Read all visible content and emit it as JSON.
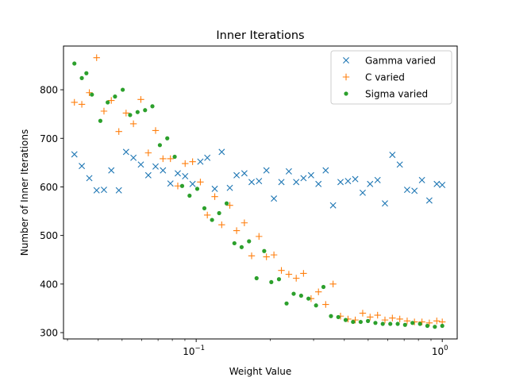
{
  "chart_data": {
    "type": "scatter",
    "title": "Inner Iterations",
    "xlabel": "Weight Value",
    "ylabel": "Number of Inner Iterations",
    "xscale": "log",
    "xlim": [
      0.0289,
      1.15
    ],
    "ylim": [
      287,
      890
    ],
    "x_ticks": [
      {
        "value": 0.1,
        "base": "10",
        "exp": "−1"
      },
      {
        "value": 1,
        "base": "10",
        "exp": "0"
      }
    ],
    "y_ticks": [
      300,
      400,
      500,
      600,
      700,
      800
    ],
    "grid": false,
    "legend_position": "top-right",
    "series": [
      {
        "name": "Gamma varied",
        "marker": "x",
        "color": "#1f77b4",
        "x": [
          0.032,
          0.0343,
          0.0368,
          0.0394,
          0.0422,
          0.0452,
          0.0485,
          0.0519,
          0.0556,
          0.0596,
          0.0639,
          0.0684,
          0.0733,
          0.0786,
          0.0842,
          0.0902,
          0.0967,
          0.104,
          0.111,
          0.119,
          0.127,
          0.137,
          0.146,
          0.157,
          0.168,
          0.18,
          0.193,
          0.207,
          0.222,
          0.238,
          0.255,
          0.273,
          0.293,
          0.314,
          0.336,
          0.36,
          0.386,
          0.414,
          0.443,
          0.475,
          0.509,
          0.546,
          0.585,
          0.627,
          0.672,
          0.72,
          0.771,
          0.827,
          0.886,
          0.95,
          1.0
        ],
        "y": [
          667,
          643,
          618,
          593,
          594,
          634,
          593,
          672,
          660,
          646,
          624,
          642,
          634,
          607,
          628,
          622,
          606,
          652,
          660,
          596,
          672,
          598,
          624,
          628,
          610,
          612,
          634,
          576,
          610,
          632,
          610,
          618,
          624,
          606,
          634,
          562,
          610,
          612,
          616,
          588,
          606,
          614,
          566,
          666,
          646,
          594,
          592,
          614,
          572,
          606,
          604
        ]
      },
      {
        "name": "C varied",
        "marker": "+",
        "color": "#ff7f0e",
        "x": [
          0.032,
          0.0343,
          0.0368,
          0.0394,
          0.0422,
          0.0452,
          0.0485,
          0.0519,
          0.0556,
          0.0596,
          0.0639,
          0.0684,
          0.0733,
          0.0786,
          0.0842,
          0.0902,
          0.0967,
          0.104,
          0.111,
          0.119,
          0.127,
          0.137,
          0.146,
          0.157,
          0.168,
          0.18,
          0.193,
          0.207,
          0.222,
          0.238,
          0.255,
          0.273,
          0.293,
          0.314,
          0.336,
          0.36,
          0.386,
          0.414,
          0.443,
          0.475,
          0.509,
          0.546,
          0.585,
          0.627,
          0.672,
          0.72,
          0.771,
          0.827,
          0.886,
          0.95,
          1.0
        ],
        "y": [
          774,
          770,
          794,
          866,
          756,
          778,
          714,
          752,
          730,
          780,
          670,
          716,
          658,
          658,
          602,
          648,
          652,
          610,
          542,
          580,
          522,
          562,
          510,
          526,
          458,
          498,
          456,
          460,
          428,
          420,
          412,
          422,
          370,
          384,
          358,
          400,
          334,
          328,
          326,
          340,
          332,
          336,
          326,
          330,
          328,
          324,
          322,
          322,
          320,
          324,
          322
        ]
      },
      {
        "name": "Sigma varied",
        "marker": "o",
        "color": "#2ca02c",
        "x": [
          0.032,
          0.0343,
          0.0358,
          0.0377,
          0.0408,
          0.0437,
          0.0468,
          0.0503,
          0.0539,
          0.0578,
          0.062,
          0.0664,
          0.0712,
          0.0763,
          0.0818,
          0.0877,
          0.094,
          0.101,
          0.108,
          0.116,
          0.124,
          0.133,
          0.143,
          0.153,
          0.164,
          0.176,
          0.189,
          0.202,
          0.217,
          0.233,
          0.249,
          0.267,
          0.286,
          0.307,
          0.329,
          0.353,
          0.378,
          0.405,
          0.434,
          0.466,
          0.499,
          0.535,
          0.573,
          0.615,
          0.659,
          0.706,
          0.757,
          0.812,
          0.87,
          0.933,
          1.0
        ],
        "y": [
          854,
          824,
          834,
          790,
          736,
          774,
          786,
          800,
          748,
          754,
          758,
          766,
          686,
          700,
          662,
          602,
          582,
          596,
          556,
          532,
          546,
          566,
          484,
          476,
          488,
          412,
          468,
          404,
          410,
          360,
          380,
          376,
          370,
          356,
          394,
          334,
          332,
          326,
          322,
          322,
          324,
          320,
          318,
          318,
          318,
          316,
          320,
          318,
          314,
          312,
          314
        ]
      }
    ]
  }
}
